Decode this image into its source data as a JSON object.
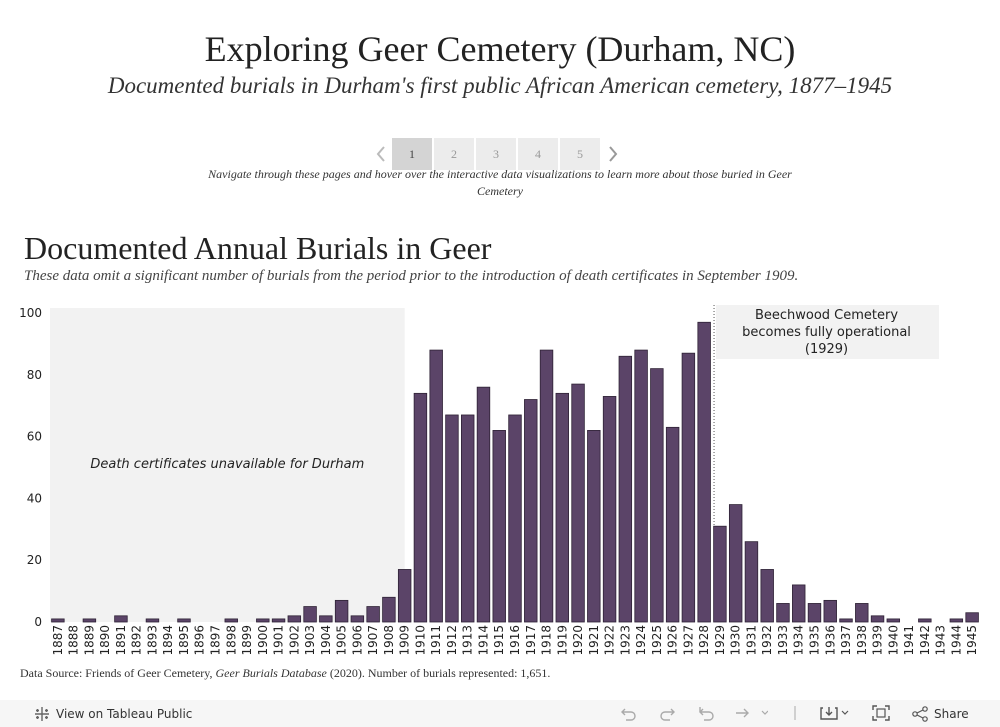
{
  "header": {
    "title": "Exploring Geer Cemetery (Durham, NC)",
    "subtitle": "Documented burials in Durham's first public African American cemetery, 1877–1945"
  },
  "pager": {
    "prev_icon": "chevron-left-icon",
    "next_icon": "chevron-right-icon",
    "pages": [
      "1",
      "2",
      "3",
      "4",
      "5"
    ],
    "active_page": "1",
    "instructions": "Navigate through these pages and hover over the interactive data visualizations to learn more about those buried in Geer Cemetery"
  },
  "chart_data": {
    "type": "bar",
    "title": "Documented Annual Burials in Geer",
    "subtitle": "These data omit a significant number of burials from the period prior to the introduction of death certificates in September 1909.",
    "xlabel": "",
    "ylabel": "",
    "ylim": [
      0,
      100
    ],
    "yticks": [
      0,
      20,
      40,
      60,
      80,
      100
    ],
    "grid": false,
    "bar_color": "#5b4468",
    "categories": [
      "1887",
      "1888",
      "1889",
      "1890",
      "1891",
      "1892",
      "1893",
      "1894",
      "1895",
      "1896",
      "1897",
      "1898",
      "1899",
      "1900",
      "1901",
      "1902",
      "1903",
      "1904",
      "1905",
      "1906",
      "1907",
      "1908",
      "1909",
      "1910",
      "1911",
      "1912",
      "1913",
      "1914",
      "1915",
      "1916",
      "1917",
      "1918",
      "1919",
      "1920",
      "1921",
      "1922",
      "1923",
      "1924",
      "1925",
      "1926",
      "1927",
      "1928",
      "1929",
      "1930",
      "1931",
      "1932",
      "1933",
      "1934",
      "1935",
      "1936",
      "1937",
      "1938",
      "1939",
      "1940",
      "1941",
      "1942",
      "1943",
      "1944",
      "1945"
    ],
    "values": [
      1,
      0,
      1,
      0,
      2,
      0,
      1,
      0,
      1,
      0,
      0,
      1,
      0,
      1,
      1,
      2,
      5,
      2,
      7,
      2,
      5,
      8,
      17,
      74,
      88,
      67,
      67,
      76,
      62,
      67,
      72,
      88,
      74,
      77,
      62,
      73,
      86,
      88,
      82,
      63,
      87,
      97,
      31,
      38,
      26,
      17,
      6,
      12,
      6,
      7,
      1,
      6,
      2,
      1,
      0,
      1,
      0,
      1,
      3
    ],
    "annotations": [
      {
        "text": "Death certificates unavailable for Durham",
        "x_start": "1887",
        "x_end": "1909",
        "shade_color": "#f2f2f2"
      },
      {
        "text_lines": [
          "Beechwood Cemetery",
          "becomes fully operational",
          "(1929)"
        ],
        "reference_line_at": "1929",
        "shade_color": "#f2f2f2"
      }
    ]
  },
  "data_source": {
    "prefix": "Data Source: Friends of Geer Cemetery, ",
    "database": "Geer Burials Database",
    "suffix": " (2020). Number of burials represented: 1,651."
  },
  "footer": {
    "view_label": "View on Tableau Public",
    "share_label": "Share",
    "icons": [
      "tableau-logo-icon",
      "undo-icon",
      "redo-icon",
      "revert-icon",
      "refresh-icon",
      "download-icon",
      "fullscreen-icon",
      "share-icon"
    ]
  }
}
